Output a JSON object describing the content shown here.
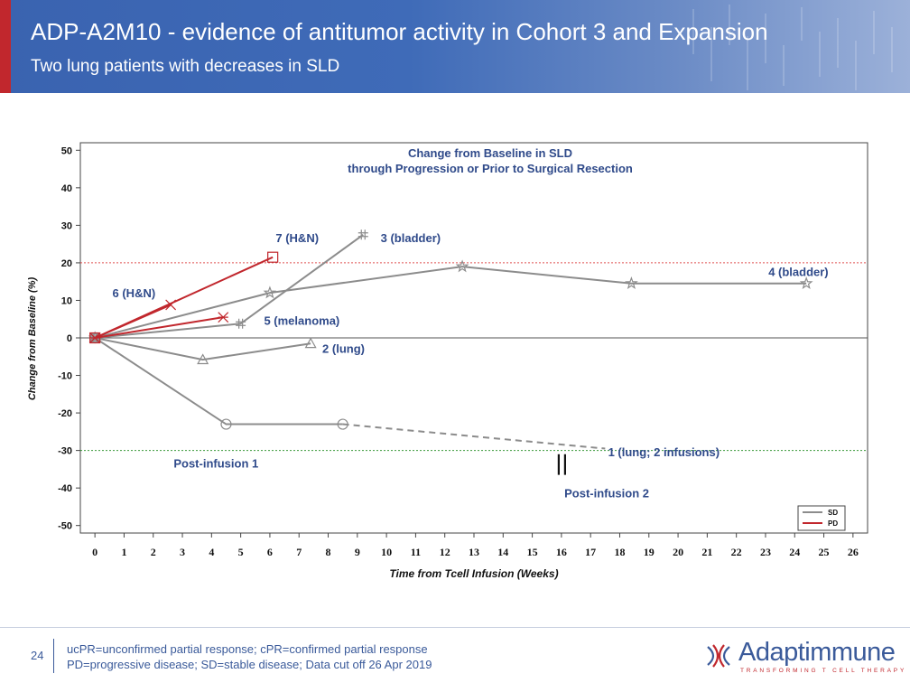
{
  "slide": {
    "title": "ADP-A2M10 - evidence of antitumor activity in Cohort 3 and Expansion",
    "subtitle": "Two lung patients with decreases in SLD",
    "page_number": "24",
    "footnotes": [
      "ucPR=unconfirmed partial response; cPR=confirmed partial response",
      "PD=progressive disease; SD=stable disease; Data cut off 26 Apr 2019"
    ],
    "logo": {
      "name": "Adaptimmune",
      "tagline": "TRANSFORMING T CELL THERAPY"
    },
    "colors": {
      "brand_blue": "#3a5a9a",
      "accent_red": "#c1272d"
    }
  },
  "chart_data": {
    "type": "line",
    "title": "Change from Baseline in SLD",
    "subtitle": "through Progression or Prior to Surgical Resection",
    "xlabel": "Time from Tcell Infusion (Weeks)",
    "ylabel": "Change from Baseline (%)",
    "xlim": [
      -0.5,
      26.5
    ],
    "ylim": [
      -52,
      52
    ],
    "x_ticks": [
      "0",
      "1",
      "2",
      "3",
      "4",
      "5",
      "6",
      "7",
      "8",
      "9",
      "10",
      "11",
      "12",
      "13",
      "14",
      "15",
      "16",
      "17",
      "18",
      "19",
      "20",
      "21",
      "22",
      "23",
      "24",
      "25",
      "26"
    ],
    "y_ticks": [
      "50",
      "40",
      "30",
      "20",
      "10",
      "0",
      "-10",
      "-20",
      "-30",
      "-40",
      "-50"
    ],
    "reference_lines": [
      {
        "y": 20,
        "color": "#e05050",
        "style": "dotted"
      },
      {
        "y": 0,
        "color": "#555555",
        "style": "solid"
      },
      {
        "y": -30,
        "color": "#3a9a3a",
        "style": "dotted"
      }
    ],
    "legend": {
      "position": "bottom-right",
      "entries": [
        {
          "label": "SD",
          "color": "#8c8c8c"
        },
        {
          "label": "PD",
          "color": "#c1272d"
        }
      ]
    },
    "series": [
      {
        "name": "1 (lung; 2 infusions)",
        "status": "SD",
        "marker": "circle",
        "points": [
          [
            0,
            0
          ],
          [
            4.5,
            -23
          ],
          [
            8.5,
            -23
          ]
        ],
        "dashed_extension": [
          [
            8.5,
            -23
          ],
          [
            17.5,
            -29.5
          ]
        ]
      },
      {
        "name": "2 (lung)",
        "status": "SD",
        "marker": "triangle",
        "points": [
          [
            0,
            0
          ],
          [
            3.7,
            -5.8
          ],
          [
            7.4,
            -1.5
          ]
        ]
      },
      {
        "name": "3 (bladder)",
        "status": "SD",
        "marker": "hash",
        "points": [
          [
            0,
            0
          ],
          [
            5,
            3.8
          ],
          [
            9.2,
            27.5
          ]
        ]
      },
      {
        "name": "4 (bladder)",
        "status": "SD",
        "marker": "star",
        "points": [
          [
            0,
            0
          ],
          [
            6,
            12
          ],
          [
            12.6,
            19
          ],
          [
            18.4,
            14.5
          ],
          [
            24.4,
            14.5
          ]
        ]
      },
      {
        "name": "5 (melanoma)",
        "status": "PD",
        "marker": "asterisk",
        "points": [
          [
            0,
            0
          ],
          [
            4.4,
            5.5
          ]
        ]
      },
      {
        "name": "6 (H&N)",
        "status": "PD",
        "marker": "x",
        "points": [
          [
            0,
            0
          ],
          [
            2.6,
            8.8
          ]
        ]
      },
      {
        "name": "7 (H&N)",
        "status": "PD",
        "marker": "square",
        "points": [
          [
            0,
            0
          ],
          [
            6.1,
            21.5
          ]
        ]
      }
    ],
    "series_labels": [
      {
        "text": "7 (H&N)",
        "x": 6.2,
        "y": 25.5
      },
      {
        "text": "3 (bladder)",
        "x": 9.8,
        "y": 25.5
      },
      {
        "text": "4 (bladder)",
        "x": 23.1,
        "y": 16.5
      },
      {
        "text": "6 (H&N)",
        "x": 0.6,
        "y": 10.8
      },
      {
        "text": "5 (melanoma)",
        "x": 5.8,
        "y": 3.5
      },
      {
        "text": "2 (lung)",
        "x": 7.8,
        "y": -4
      },
      {
        "text": "1 (lung; 2 infusions)",
        "x": 17.6,
        "y": -31.5
      }
    ],
    "annotations": [
      {
        "text": "Post-infusion 1",
        "x": 2.7,
        "y": -34.5
      },
      {
        "text": "Post-infusion 2",
        "x": 16.1,
        "y": -42.5
      }
    ],
    "infusion2_marker_x": 16
  }
}
